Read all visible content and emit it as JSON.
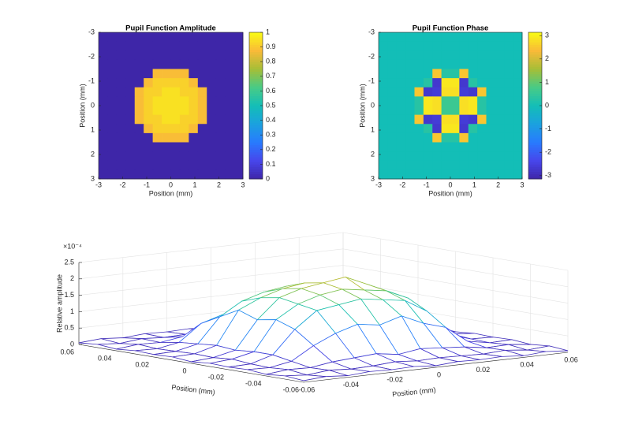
{
  "chart_data": [
    {
      "type": "heatmap",
      "title": "Pupil Function Amplitude",
      "xlabel": "Position (mm)",
      "ylabel": "Position (mm)",
      "xlim": [
        -3,
        3
      ],
      "ylim": [
        -3,
        3
      ],
      "ydir": "reverse",
      "xticks": [
        -3,
        -2,
        -1,
        0,
        1,
        2,
        3
      ],
      "yticks": [
        -3,
        -2,
        -1,
        0,
        1,
        2,
        3
      ],
      "clim": [
        0,
        1
      ],
      "colorbar_ticks": [
        0,
        0.1,
        0.2,
        0.3,
        0.4,
        0.5,
        0.6,
        0.7,
        0.8,
        0.9,
        1
      ],
      "colormap": "parula",
      "z": [
        [
          0,
          0,
          0,
          0,
          0,
          0,
          0,
          0,
          0,
          0,
          0,
          0,
          0,
          0,
          0,
          0
        ],
        [
          0,
          0,
          0,
          0,
          0,
          0,
          0,
          0,
          0,
          0,
          0,
          0,
          0,
          0,
          0,
          0
        ],
        [
          0,
          0,
          0,
          0,
          0,
          0,
          0,
          0,
          0,
          0,
          0,
          0,
          0,
          0,
          0,
          0
        ],
        [
          0,
          0,
          0,
          0,
          0,
          0,
          0,
          0,
          0,
          0,
          0,
          0,
          0,
          0,
          0,
          0
        ],
        [
          0,
          0,
          0,
          0,
          0,
          0,
          0.88,
          0.88,
          0.88,
          0.88,
          0,
          0,
          0,
          0,
          0,
          0
        ],
        [
          0,
          0,
          0,
          0,
          0,
          0.88,
          0.92,
          0.92,
          0.92,
          0.92,
          0.88,
          0,
          0,
          0,
          0,
          0
        ],
        [
          0,
          0,
          0,
          0,
          0.88,
          0.92,
          0.92,
          0.95,
          0.95,
          0.92,
          0.92,
          0.88,
          0,
          0,
          0,
          0
        ],
        [
          0,
          0,
          0,
          0,
          0.88,
          0.92,
          0.95,
          0.95,
          0.95,
          0.95,
          0.92,
          0.88,
          0,
          0,
          0,
          0
        ],
        [
          0,
          0,
          0,
          0,
          0.88,
          0.92,
          0.95,
          0.95,
          0.95,
          0.95,
          0.92,
          0.88,
          0,
          0,
          0,
          0
        ],
        [
          0,
          0,
          0,
          0,
          0.88,
          0.92,
          0.92,
          0.95,
          0.95,
          0.92,
          0.92,
          0.88,
          0,
          0,
          0,
          0
        ],
        [
          0,
          0,
          0,
          0,
          0,
          0.88,
          0.92,
          0.92,
          0.92,
          0.92,
          0.88,
          0,
          0,
          0,
          0,
          0
        ],
        [
          0,
          0,
          0,
          0,
          0,
          0,
          0.88,
          0.88,
          0.88,
          0.88,
          0,
          0,
          0,
          0,
          0,
          0
        ],
        [
          0,
          0,
          0,
          0,
          0,
          0,
          0,
          0,
          0,
          0,
          0,
          0,
          0,
          0,
          0,
          0
        ],
        [
          0,
          0,
          0,
          0,
          0,
          0,
          0,
          0,
          0,
          0,
          0,
          0,
          0,
          0,
          0,
          0
        ],
        [
          0,
          0,
          0,
          0,
          0,
          0,
          0,
          0,
          0,
          0,
          0,
          0,
          0,
          0,
          0,
          0
        ],
        [
          0,
          0,
          0,
          0,
          0,
          0,
          0,
          0,
          0,
          0,
          0,
          0,
          0,
          0,
          0,
          0
        ]
      ]
    },
    {
      "type": "heatmap",
      "title": "Pupil Function Phase",
      "xlabel": "Position (mm)",
      "ylabel": "Position (mm)",
      "xlim": [
        -3,
        3
      ],
      "ylim": [
        -3,
        3
      ],
      "ydir": "reverse",
      "xticks": [
        -3,
        -2,
        -1,
        0,
        1,
        2,
        3
      ],
      "yticks": [
        -3,
        -2,
        -1,
        0,
        1,
        2,
        3
      ],
      "clim": [
        -3.1416,
        3.1416
      ],
      "colorbar_ticks": [
        -3,
        -2,
        -1,
        0,
        1,
        2,
        3
      ],
      "colormap": "parula",
      "z": [
        [
          0,
          0,
          0,
          0,
          0,
          0,
          0,
          0,
          0,
          0,
          0,
          0,
          0,
          0,
          0,
          0
        ],
        [
          0,
          0,
          0,
          0,
          0,
          0,
          0,
          0,
          0,
          0,
          0,
          0,
          0,
          0,
          0,
          0
        ],
        [
          0,
          0,
          0,
          0,
          0,
          0,
          0,
          0,
          0,
          0,
          0,
          0,
          0,
          0,
          0,
          0
        ],
        [
          0,
          0,
          0,
          0,
          0,
          0,
          0,
          0,
          0,
          0,
          0,
          0,
          0,
          0,
          0,
          0
        ],
        [
          0,
          0,
          0,
          0,
          0,
          0,
          2.5,
          0.3,
          0.3,
          2.5,
          0,
          0,
          0,
          0,
          0,
          0
        ],
        [
          0,
          0,
          0,
          0,
          0,
          0.3,
          -2.7,
          2.9,
          2.9,
          -2.7,
          0.3,
          0,
          0,
          0,
          0,
          0
        ],
        [
          0,
          0,
          0,
          0,
          2.5,
          -2.7,
          -2.6,
          2.8,
          2.8,
          -2.6,
          -2.7,
          2.5,
          0,
          0,
          0,
          0
        ],
        [
          0,
          0,
          0,
          0,
          0.3,
          2.9,
          2.8,
          0.6,
          0.6,
          2.8,
          2.9,
          0.3,
          0,
          0,
          0,
          0
        ],
        [
          0,
          0,
          0,
          0,
          0.3,
          2.9,
          2.8,
          0.6,
          0.6,
          2.8,
          2.9,
          0.3,
          0,
          0,
          0,
          0
        ],
        [
          0,
          0,
          0,
          0,
          2.5,
          -2.7,
          -2.6,
          2.8,
          2.8,
          -2.6,
          -2.7,
          2.5,
          0,
          0,
          0,
          0
        ],
        [
          0,
          0,
          0,
          0,
          0,
          0.3,
          -2.7,
          2.9,
          2.9,
          -2.7,
          0.3,
          0,
          0,
          0,
          0,
          0
        ],
        [
          0,
          0,
          0,
          0,
          0,
          0,
          2.5,
          0.3,
          0.3,
          2.5,
          0,
          0,
          0,
          0,
          0,
          0
        ],
        [
          0,
          0,
          0,
          0,
          0,
          0,
          0,
          0,
          0,
          0,
          0,
          0,
          0,
          0,
          0,
          0
        ],
        [
          0,
          0,
          0,
          0,
          0,
          0,
          0,
          0,
          0,
          0,
          0,
          0,
          0,
          0,
          0,
          0
        ],
        [
          0,
          0,
          0,
          0,
          0,
          0,
          0,
          0,
          0,
          0,
          0,
          0,
          0,
          0,
          0,
          0
        ],
        [
          0,
          0,
          0,
          0,
          0,
          0,
          0,
          0,
          0,
          0,
          0,
          0,
          0,
          0,
          0,
          0
        ]
      ]
    },
    {
      "type": "mesh3d",
      "xlabel": "Position (mm)",
      "ylabel": "Position (mm)",
      "zlabel": "Relative amplitude",
      "z_exponent": "×10⁻⁴",
      "xlim": [
        -0.06,
        0.06
      ],
      "ylim": [
        -0.06,
        0.06
      ],
      "zlim": [
        0,
        2.5
      ],
      "xticks": [
        -0.06,
        -0.04,
        -0.02,
        0,
        0.02,
        0.04,
        0.06
      ],
      "yticks": [
        -0.06,
        -0.04,
        -0.02,
        0,
        0.02,
        0.04,
        0.06
      ],
      "zticks": [
        0,
        0.5,
        1,
        1.5,
        2,
        2.5
      ],
      "grid": true,
      "colormap": "parula",
      "x": [
        -0.06,
        -0.05,
        -0.04,
        -0.03,
        -0.02,
        -0.01,
        0,
        0.01,
        0.02,
        0.03,
        0.04,
        0.05,
        0.06
      ],
      "y": [
        -0.06,
        -0.05,
        -0.04,
        -0.03,
        -0.02,
        -0.01,
        0,
        0.01,
        0.02,
        0.03,
        0.04,
        0.05,
        0.06
      ],
      "z": [
        [
          0.05,
          0.1,
          0.05,
          0.1,
          0.08,
          0.1,
          0.05,
          0.1,
          0.08,
          0.1,
          0.05,
          0.1,
          0.05
        ],
        [
          0.1,
          0.05,
          0.12,
          0.08,
          0.1,
          0.15,
          0.1,
          0.12,
          0.1,
          0.08,
          0.12,
          0.05,
          0.1
        ],
        [
          0.05,
          0.12,
          0.1,
          0.2,
          0.25,
          0.3,
          0.2,
          0.3,
          0.25,
          0.2,
          0.1,
          0.12,
          0.05
        ],
        [
          0.1,
          0.08,
          0.2,
          0.6,
          0.9,
          1.1,
          1.0,
          1.2,
          0.9,
          0.7,
          0.2,
          0.08,
          0.1
        ],
        [
          0.08,
          0.1,
          0.3,
          1.0,
          1.5,
          1.6,
          1.7,
          1.6,
          1.5,
          1.1,
          0.3,
          0.1,
          0.08
        ],
        [
          0.1,
          0.15,
          0.3,
          1.2,
          1.6,
          1.8,
          1.9,
          1.8,
          1.7,
          1.4,
          0.35,
          0.15,
          0.1
        ],
        [
          0.05,
          0.1,
          0.25,
          1.1,
          1.7,
          1.9,
          2.0,
          2.1,
          1.8,
          1.5,
          0.3,
          0.1,
          0.05
        ],
        [
          0.1,
          0.12,
          0.3,
          1.3,
          1.6,
          1.8,
          1.9,
          1.8,
          1.6,
          1.3,
          0.25,
          0.12,
          0.1
        ],
        [
          0.08,
          0.1,
          0.25,
          1.0,
          1.4,
          1.6,
          1.7,
          1.5,
          1.5,
          1.0,
          0.3,
          0.1,
          0.08
        ],
        [
          0.1,
          0.08,
          0.2,
          0.7,
          0.9,
          1.1,
          1.2,
          1.0,
          0.9,
          0.6,
          0.2,
          0.08,
          0.1
        ],
        [
          0.05,
          0.12,
          0.1,
          0.2,
          0.3,
          0.25,
          0.3,
          0.2,
          0.25,
          0.2,
          0.1,
          0.12,
          0.05
        ],
        [
          0.1,
          0.05,
          0.12,
          0.08,
          0.1,
          0.12,
          0.1,
          0.15,
          0.1,
          0.08,
          0.12,
          0.05,
          0.1
        ],
        [
          0.05,
          0.1,
          0.05,
          0.1,
          0.08,
          0.1,
          0.05,
          0.1,
          0.08,
          0.1,
          0.05,
          0.1,
          0.05
        ]
      ]
    }
  ]
}
